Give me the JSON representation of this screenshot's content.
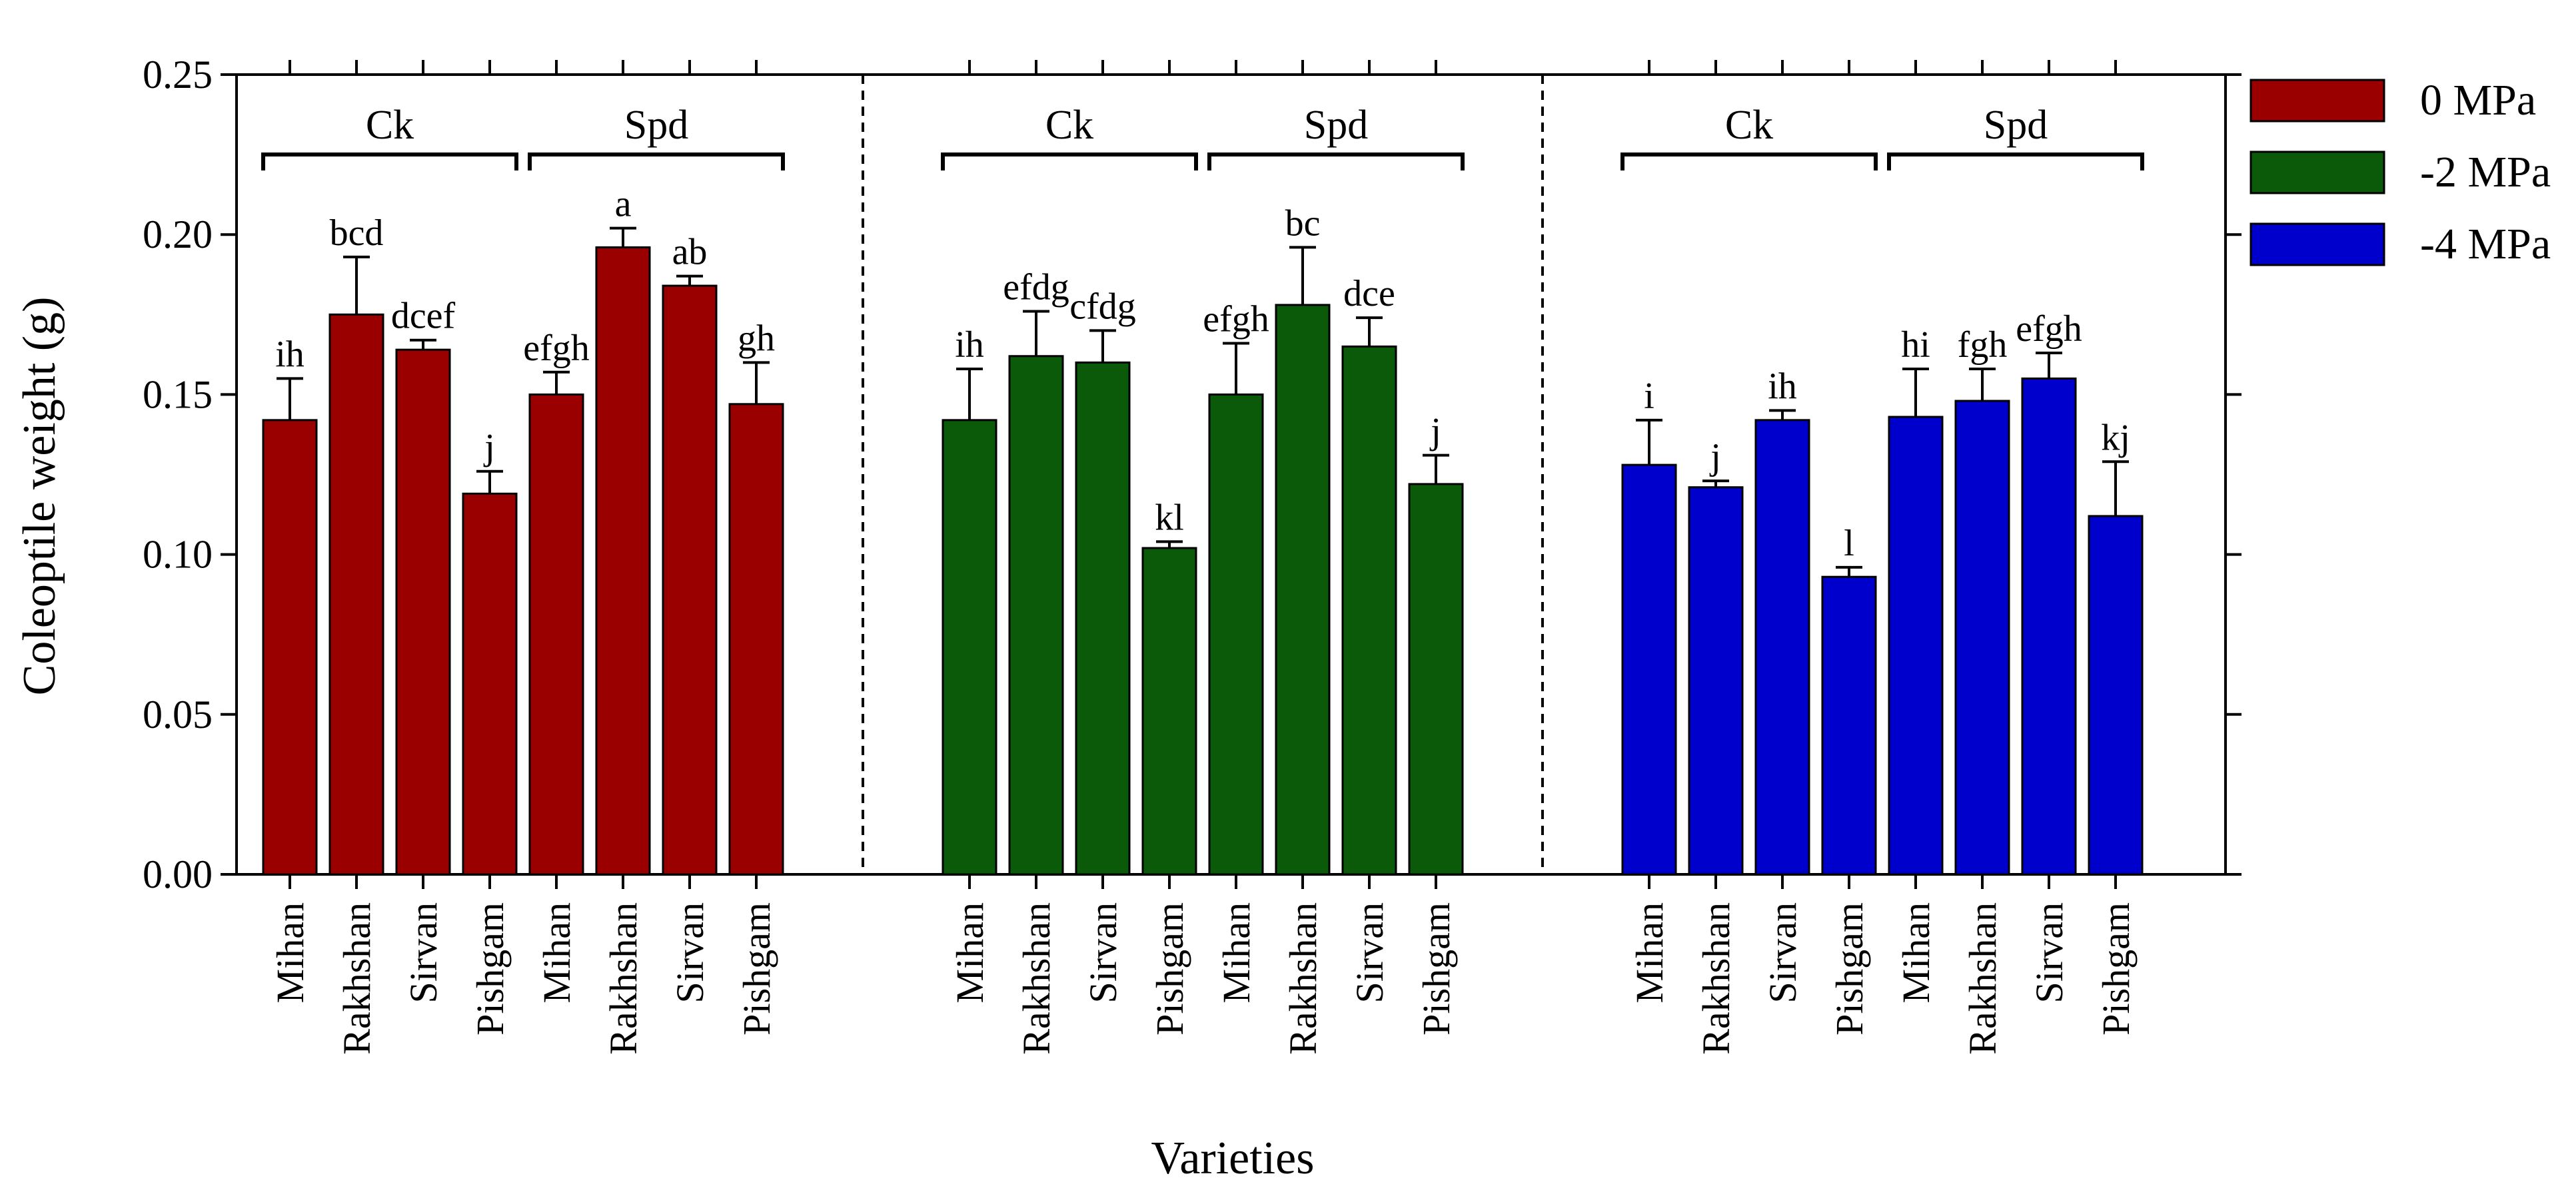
{
  "chart_data": {
    "type": "bar",
    "xlabel": "Varieties",
    "ylabel": "Coleoptile weight (g)",
    "ylim": [
      0,
      0.25
    ],
    "yticks": [
      "0.00",
      "0.05",
      "0.10",
      "0.15",
      "0.20",
      "0.25"
    ],
    "grid": false,
    "legend_position": "top-right",
    "series": [
      {
        "name": "0 MPa",
        "color": "#9b0000",
        "groups": [
          {
            "name": "Ck",
            "bars": [
              {
                "category": "Mihan",
                "value": 0.142,
                "error": 0.013,
                "letter": "ih"
              },
              {
                "category": "Rakhshan",
                "value": 0.175,
                "error": 0.018,
                "letter": "bcd"
              },
              {
                "category": "Sirvan",
                "value": 0.164,
                "error": 0.003,
                "letter": "dcef"
              },
              {
                "category": "Pishgam",
                "value": 0.119,
                "error": 0.007,
                "letter": "j"
              }
            ]
          },
          {
            "name": "Spd",
            "bars": [
              {
                "category": "Mihan",
                "value": 0.15,
                "error": 0.007,
                "letter": "efgh"
              },
              {
                "category": "Rakhshan",
                "value": 0.196,
                "error": 0.006,
                "letter": "a"
              },
              {
                "category": "Sirvan",
                "value": 0.184,
                "error": 0.003,
                "letter": "ab"
              },
              {
                "category": "Pishgam",
                "value": 0.147,
                "error": 0.013,
                "letter": "gh"
              }
            ]
          }
        ]
      },
      {
        "name": "-2 MPa",
        "color": "#0a5a0a",
        "groups": [
          {
            "name": "Ck",
            "bars": [
              {
                "category": "Mihan",
                "value": 0.142,
                "error": 0.016,
                "letter": "ih"
              },
              {
                "category": "Rakhshan",
                "value": 0.162,
                "error": 0.014,
                "letter": "efdg"
              },
              {
                "category": "Sirvan",
                "value": 0.16,
                "error": 0.01,
                "letter": "cfdg"
              },
              {
                "category": "Pishgam",
                "value": 0.102,
                "error": 0.002,
                "letter": "kl"
              }
            ]
          },
          {
            "name": "Spd",
            "bars": [
              {
                "category": "Mihan",
                "value": 0.15,
                "error": 0.016,
                "letter": "efgh"
              },
              {
                "category": "Rakhshan",
                "value": 0.178,
                "error": 0.018,
                "letter": "bc"
              },
              {
                "category": "Sirvan",
                "value": 0.165,
                "error": 0.009,
                "letter": "dce"
              },
              {
                "category": "Pishgam",
                "value": 0.122,
                "error": 0.009,
                "letter": "j"
              }
            ]
          }
        ]
      },
      {
        "name": "-4 MPa",
        "color": "#0000cc",
        "groups": [
          {
            "name": "Ck",
            "bars": [
              {
                "category": "Mihan",
                "value": 0.128,
                "error": 0.014,
                "letter": "i"
              },
              {
                "category": "Rakhshan",
                "value": 0.121,
                "error": 0.002,
                "letter": "j"
              },
              {
                "category": "Sirvan",
                "value": 0.142,
                "error": 0.003,
                "letter": "ih"
              },
              {
                "category": "Pishgam",
                "value": 0.093,
                "error": 0.003,
                "letter": "l"
              }
            ]
          },
          {
            "name": "Spd",
            "bars": [
              {
                "category": "Mihan",
                "value": 0.143,
                "error": 0.015,
                "letter": "hi"
              },
              {
                "category": "Rakhshan",
                "value": 0.148,
                "error": 0.01,
                "letter": "fgh"
              },
              {
                "category": "Sirvan",
                "value": 0.155,
                "error": 0.008,
                "letter": "efgh"
              },
              {
                "category": "Pishgam",
                "value": 0.112,
                "error": 0.017,
                "letter": "kj"
              }
            ]
          }
        ]
      }
    ]
  }
}
